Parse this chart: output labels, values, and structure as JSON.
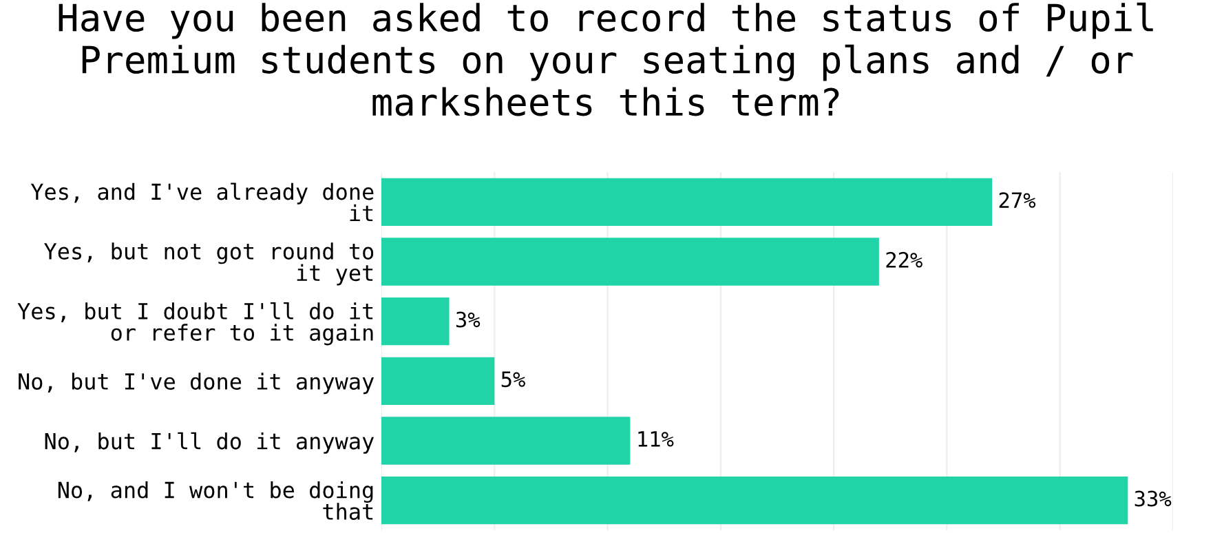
{
  "chart_data": {
    "type": "bar",
    "orientation": "horizontal",
    "title": "Have you been asked to record the status of Pupil Premium students on your seating plans and / or marksheets this term?",
    "categories": [
      "Yes, and I've already done\nit",
      "Yes, but not got round to\nit yet",
      "Yes, but I doubt I'll do it\nor refer to it again",
      "No, but I've done it anyway",
      "No, but I'll do it anyway",
      "No, and I won't be doing\nthat"
    ],
    "values": [
      27,
      22,
      3,
      5,
      11,
      33
    ],
    "value_labels": [
      "27%",
      "22%",
      "3%",
      "5%",
      "11%",
      "33%"
    ],
    "color": "#20d4a8",
    "xlim": [
      0,
      35
    ],
    "xticks": [
      {
        "value": 0,
        "label": null
      },
      {
        "value": 5,
        "label": null
      },
      {
        "value": 10,
        "label": null
      },
      {
        "value": 15,
        "label": null
      },
      {
        "value": 20,
        "label": null
      },
      {
        "value": 25,
        "label": null
      },
      {
        "value": 30,
        "label": null
      },
      {
        "value": 35,
        "label": null
      }
    ],
    "grid": "x",
    "tick_labels": "y",
    "legend": false
  }
}
